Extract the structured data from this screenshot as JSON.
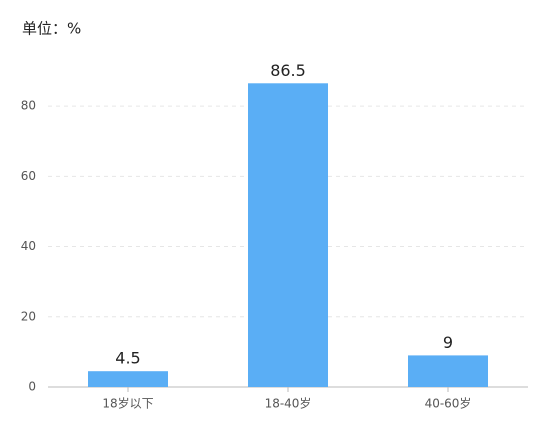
{
  "chart_data": {
    "type": "bar",
    "title": "单位：%",
    "categories": [
      "18岁以下",
      "18-40岁",
      "40-60岁"
    ],
    "values": [
      4.5,
      86.5,
      9
    ],
    "color": "#5aaef5",
    "ylim": [
      0,
      90
    ],
    "yticks": [
      0,
      20,
      40,
      60,
      80
    ],
    "grid": true
  }
}
